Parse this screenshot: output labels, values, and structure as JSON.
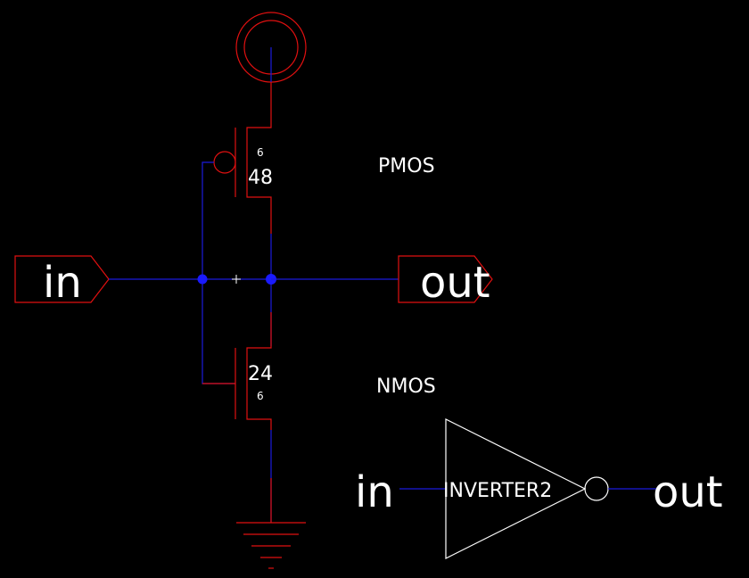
{
  "pins": {
    "input_label": "in",
    "output_label": "out"
  },
  "pmos": {
    "name": "PMOS",
    "width": "48",
    "length": "6"
  },
  "nmos": {
    "name": "NMOS",
    "width": "24",
    "length": "6"
  },
  "symbol": {
    "name": "INVERTER2",
    "input_label": "in",
    "output_label": "out"
  },
  "colors": {
    "background": "#000000",
    "wire": "#1a1adc",
    "device": "#e01010",
    "symbol": "#ffffff",
    "junction": "#1a1aff"
  }
}
